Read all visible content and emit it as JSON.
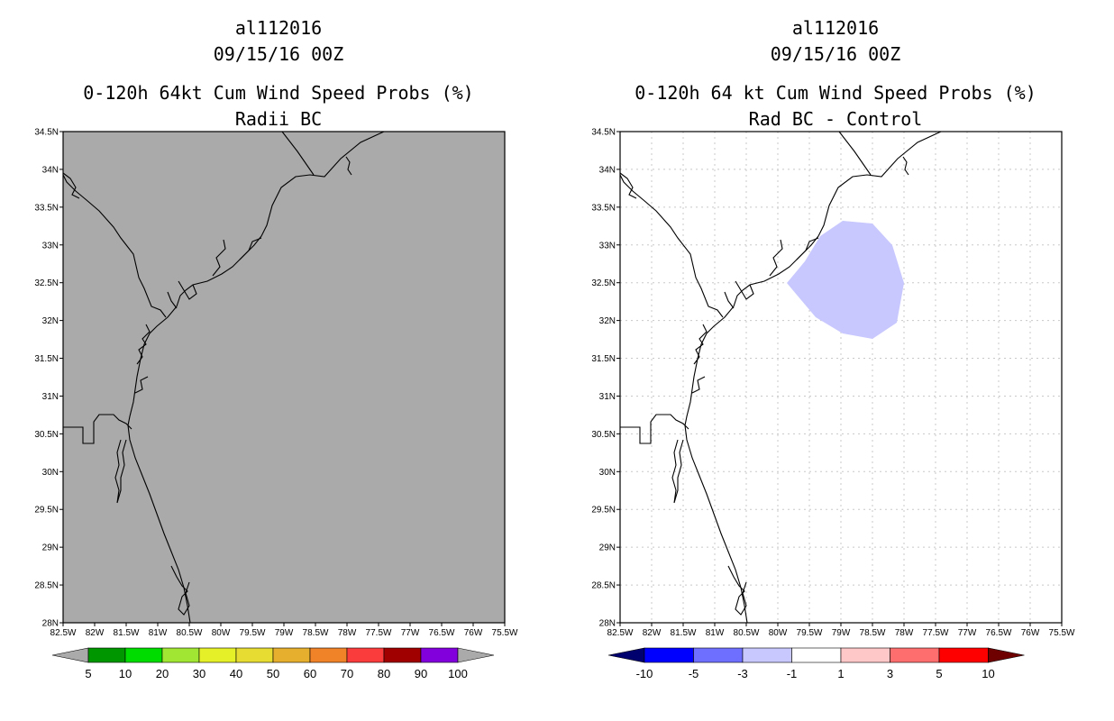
{
  "left_panel": {
    "storm_id": "al112016",
    "date": "09/15/16 00Z",
    "title": "0-120h 64kt Cum Wind Speed Probs (%)",
    "subtitle": "Radii BC",
    "background_color": "#aaaaaa",
    "colorbar": {
      "colors": [
        "#009600",
        "#00dc00",
        "#a0e632",
        "#e6f028",
        "#e6dc32",
        "#e6af2d",
        "#f08228",
        "#fa3c3c",
        "#a00000",
        "#8200dc"
      ],
      "end_color": "#aaaaaa",
      "labels": [
        "5",
        "10",
        "20",
        "30",
        "40",
        "50",
        "60",
        "70",
        "80",
        "90",
        "100"
      ]
    }
  },
  "right_panel": {
    "storm_id": "al112016",
    "date": "09/15/16 00Z",
    "title": "0-120h 64 kt Cum Wind Speed Probs (%)",
    "subtitle": "Rad BC - Control",
    "background_color": "#ffffff",
    "shaded_region": {
      "value_range": "-3 to -1",
      "color": "#c8c8ff"
    },
    "colorbar": {
      "colors": [
        "#0000ff",
        "#6e6eff",
        "#c8c8ff",
        "#ffffff",
        "#ffc8c8",
        "#ff6e6e",
        "#ff0000"
      ],
      "low_end_color": "#00006e",
      "high_end_color": "#6e0000",
      "labels": [
        "-10",
        "-5",
        "-3",
        "-1",
        "1",
        "3",
        "5",
        "10"
      ]
    }
  },
  "axes": {
    "lat_labels": [
      "34.5N",
      "34N",
      "33.5N",
      "33N",
      "32.5N",
      "32N",
      "31.5N",
      "31N",
      "30.5N",
      "30N",
      "29.5N",
      "29N",
      "28.5N",
      "28N"
    ],
    "lon_labels": [
      "82.5W",
      "82W",
      "81.5W",
      "81W",
      "80.5W",
      "80W",
      "79.5W",
      "79W",
      "78.5W",
      "78W",
      "77.5W",
      "77W",
      "76.5W",
      "76W",
      "75.5W"
    ],
    "lat_range": [
      28,
      34.5
    ],
    "lon_range": [
      -82.5,
      -75.5
    ]
  }
}
